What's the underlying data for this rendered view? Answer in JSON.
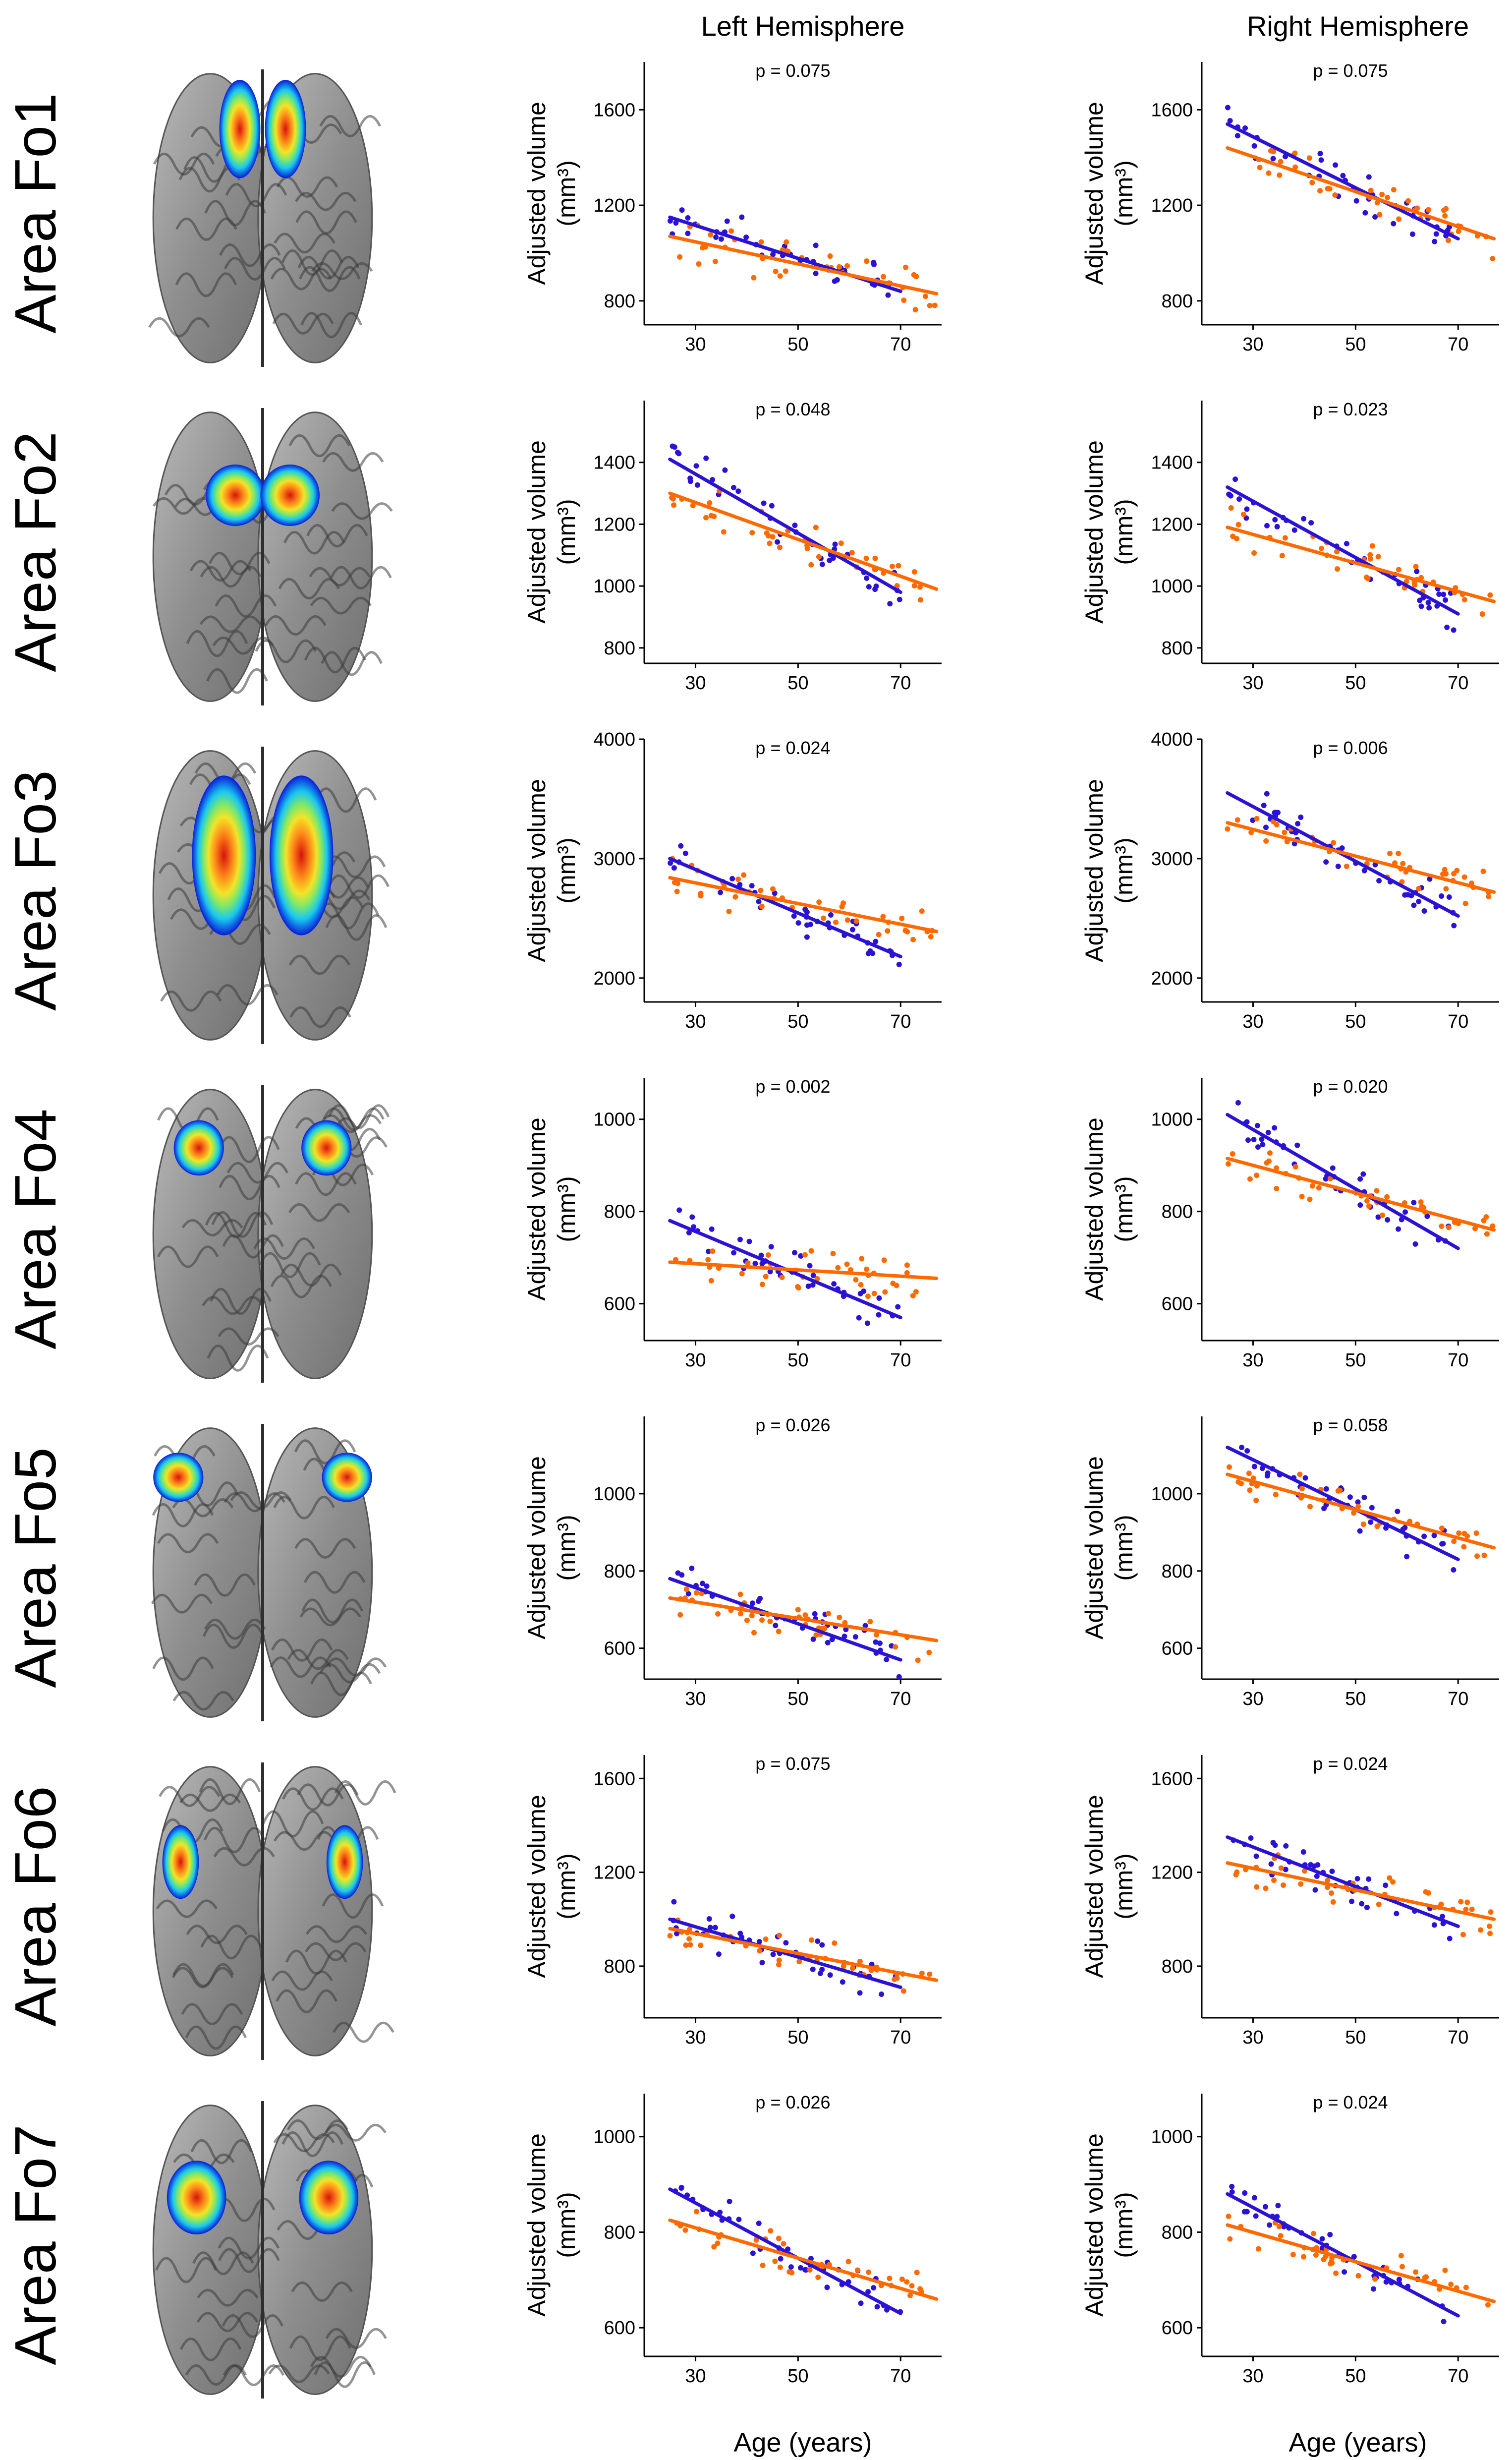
{
  "headers": {
    "left": "Left Hemisphere",
    "right": "Right Hemisphere"
  },
  "y_axis_label": "Adjusted volume",
  "y_axis_unit": "(mm³)",
  "x_axis_label": "Age (years)",
  "colors": {
    "series_a": "#2b13d6",
    "series_b": "#ff6a00"
  },
  "brain_map_colormap": [
    "#0a1dd8",
    "#19c8f0",
    "#7ee86a",
    "#f3e427",
    "#ff8a1a",
    "#d6140c"
  ],
  "chart_data": [
    {
      "type": "scatter",
      "area": "Area Fo1",
      "hemisphere": "Left Hemisphere",
      "p_value": "p = 0.075",
      "ylim": [
        700,
        1800
      ],
      "yticks": [
        800,
        1200,
        1600
      ],
      "xlim": [
        20,
        78
      ],
      "xticks": [
        30,
        50,
        70
      ],
      "series": [
        {
          "name": "blue",
          "line": [
            [
              25,
              1150
            ],
            [
              70,
              840
            ]
          ]
        },
        {
          "name": "orange",
          "line": [
            [
              25,
              1070
            ],
            [
              77,
              830
            ]
          ]
        }
      ]
    },
    {
      "type": "scatter",
      "area": "Area Fo1",
      "hemisphere": "Right Hemisphere",
      "p_value": "p = 0.075",
      "ylim": [
        700,
        1800
      ],
      "yticks": [
        800,
        1200,
        1600
      ],
      "xlim": [
        20,
        78
      ],
      "xticks": [
        30,
        50,
        70
      ],
      "series": [
        {
          "name": "blue",
          "line": [
            [
              25,
              1540
            ],
            [
              70,
              1060
            ]
          ]
        },
        {
          "name": "orange",
          "line": [
            [
              25,
              1440
            ],
            [
              77,
              1060
            ]
          ]
        }
      ]
    },
    {
      "type": "scatter",
      "area": "Area Fo2",
      "hemisphere": "Left Hemisphere",
      "p_value": "p = 0.048",
      "ylim": [
        750,
        1600
      ],
      "yticks": [
        800,
        1000,
        1200,
        1400
      ],
      "xlim": [
        20,
        78
      ],
      "xticks": [
        30,
        50,
        70
      ],
      "series": [
        {
          "name": "blue",
          "line": [
            [
              25,
              1410
            ],
            [
              70,
              980
            ]
          ]
        },
        {
          "name": "orange",
          "line": [
            [
              25,
              1300
            ],
            [
              77,
              990
            ]
          ]
        }
      ]
    },
    {
      "type": "scatter",
      "area": "Area Fo2",
      "hemisphere": "Right Hemisphere",
      "p_value": "p = 0.023",
      "ylim": [
        750,
        1600
      ],
      "yticks": [
        800,
        1000,
        1200,
        1400
      ],
      "xlim": [
        20,
        78
      ],
      "xticks": [
        30,
        50,
        70
      ],
      "series": [
        {
          "name": "blue",
          "line": [
            [
              25,
              1320
            ],
            [
              70,
              910
            ]
          ]
        },
        {
          "name": "orange",
          "line": [
            [
              25,
              1190
            ],
            [
              77,
              950
            ]
          ]
        }
      ]
    },
    {
      "type": "scatter",
      "area": "Area Fo3",
      "hemisphere": "Left Hemisphere",
      "p_value": "p = 0.024",
      "ylim": [
        1800,
        4000
      ],
      "yticks": [
        2000,
        3000,
        4000
      ],
      "xlim": [
        20,
        78
      ],
      "xticks": [
        30,
        50,
        70
      ],
      "series": [
        {
          "name": "blue",
          "line": [
            [
              25,
              3000
            ],
            [
              70,
              2180
            ]
          ]
        },
        {
          "name": "orange",
          "line": [
            [
              25,
              2840
            ],
            [
              77,
              2390
            ]
          ]
        }
      ]
    },
    {
      "type": "scatter",
      "area": "Area Fo3",
      "hemisphere": "Right Hemisphere",
      "p_value": "p = 0.006",
      "ylim": [
        1800,
        4000
      ],
      "yticks": [
        2000,
        3000,
        4000
      ],
      "xlim": [
        20,
        78
      ],
      "xticks": [
        30,
        50,
        70
      ],
      "series": [
        {
          "name": "blue",
          "line": [
            [
              25,
              3550
            ],
            [
              70,
              2520
            ]
          ]
        },
        {
          "name": "orange",
          "line": [
            [
              25,
              3300
            ],
            [
              77,
              2720
            ]
          ]
        }
      ]
    },
    {
      "type": "scatter",
      "area": "Area Fo4",
      "hemisphere": "Left Hemisphere",
      "p_value": "p = 0.002",
      "ylim": [
        520,
        1090
      ],
      "yticks": [
        600,
        800,
        1000
      ],
      "xlim": [
        20,
        78
      ],
      "xticks": [
        30,
        50,
        70
      ],
      "series": [
        {
          "name": "blue",
          "line": [
            [
              25,
              780
            ],
            [
              70,
              570
            ]
          ]
        },
        {
          "name": "orange",
          "line": [
            [
              25,
              690
            ],
            [
              77,
              655
            ]
          ]
        }
      ]
    },
    {
      "type": "scatter",
      "area": "Area Fo4",
      "hemisphere": "Right Hemisphere",
      "p_value": "p = 0.020",
      "ylim": [
        520,
        1090
      ],
      "yticks": [
        600,
        800,
        1000
      ],
      "xlim": [
        20,
        78
      ],
      "xticks": [
        30,
        50,
        70
      ],
      "series": [
        {
          "name": "blue",
          "line": [
            [
              25,
              1010
            ],
            [
              70,
              720
            ]
          ]
        },
        {
          "name": "orange",
          "line": [
            [
              25,
              915
            ],
            [
              77,
              760
            ]
          ]
        }
      ]
    },
    {
      "type": "scatter",
      "area": "Area Fo5",
      "hemisphere": "Left Hemisphere",
      "p_value": "p = 0.026",
      "ylim": [
        520,
        1200
      ],
      "yticks": [
        600,
        800,
        1000
      ],
      "xlim": [
        20,
        78
      ],
      "xticks": [
        30,
        50,
        70
      ],
      "series": [
        {
          "name": "blue",
          "line": [
            [
              25,
              780
            ],
            [
              70,
              570
            ]
          ]
        },
        {
          "name": "orange",
          "line": [
            [
              25,
              730
            ],
            [
              77,
              620
            ]
          ]
        }
      ]
    },
    {
      "type": "scatter",
      "area": "Area Fo5",
      "hemisphere": "Right Hemisphere",
      "p_value": "p = 0.058",
      "ylim": [
        520,
        1200
      ],
      "yticks": [
        600,
        800,
        1000
      ],
      "xlim": [
        20,
        78
      ],
      "xticks": [
        30,
        50,
        70
      ],
      "series": [
        {
          "name": "blue",
          "line": [
            [
              25,
              1120
            ],
            [
              70,
              830
            ]
          ]
        },
        {
          "name": "orange",
          "line": [
            [
              25,
              1050
            ],
            [
              77,
              860
            ]
          ]
        }
      ]
    },
    {
      "type": "scatter",
      "area": "Area Fo6",
      "hemisphere": "Left Hemisphere",
      "p_value": "p = 0.075",
      "ylim": [
        580,
        1700
      ],
      "yticks": [
        800,
        1200,
        1600
      ],
      "xlim": [
        20,
        78
      ],
      "xticks": [
        30,
        50,
        70
      ],
      "series": [
        {
          "name": "blue",
          "line": [
            [
              25,
              1000
            ],
            [
              70,
              710
            ]
          ]
        },
        {
          "name": "orange",
          "line": [
            [
              25,
              960
            ],
            [
              77,
              740
            ]
          ]
        }
      ]
    },
    {
      "type": "scatter",
      "area": "Area Fo6",
      "hemisphere": "Right Hemisphere",
      "p_value": "p = 0.024",
      "ylim": [
        580,
        1700
      ],
      "yticks": [
        800,
        1200,
        1600
      ],
      "xlim": [
        20,
        78
      ],
      "xticks": [
        30,
        50,
        70
      ],
      "series": [
        {
          "name": "blue",
          "line": [
            [
              25,
              1350
            ],
            [
              70,
              970
            ]
          ]
        },
        {
          "name": "orange",
          "line": [
            [
              25,
              1240
            ],
            [
              77,
              1000
            ]
          ]
        }
      ]
    },
    {
      "type": "scatter",
      "area": "Area Fo7",
      "hemisphere": "Left Hemisphere",
      "p_value": "p = 0.026",
      "ylim": [
        540,
        1090
      ],
      "yticks": [
        600,
        800,
        1000
      ],
      "xlim": [
        20,
        78
      ],
      "xticks": [
        30,
        50,
        70
      ],
      "series": [
        {
          "name": "blue",
          "line": [
            [
              25,
              890
            ],
            [
              70,
              630
            ]
          ]
        },
        {
          "name": "orange",
          "line": [
            [
              25,
              825
            ],
            [
              77,
              660
            ]
          ]
        }
      ]
    },
    {
      "type": "scatter",
      "area": "Area Fo7",
      "hemisphere": "Right Hemisphere",
      "p_value": "p = 0.024",
      "ylim": [
        540,
        1090
      ],
      "yticks": [
        600,
        800,
        1000
      ],
      "xlim": [
        20,
        78
      ],
      "xticks": [
        30,
        50,
        70
      ],
      "series": [
        {
          "name": "blue",
          "line": [
            [
              25,
              880
            ],
            [
              70,
              625
            ]
          ]
        },
        {
          "name": "orange",
          "line": [
            [
              25,
              815
            ],
            [
              77,
              655
            ]
          ]
        }
      ]
    }
  ]
}
